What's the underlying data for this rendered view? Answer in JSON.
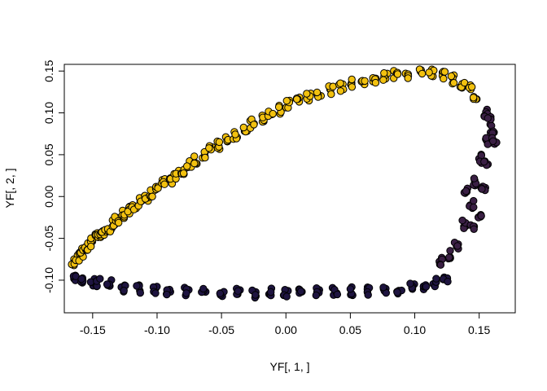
{
  "chart_data": {
    "type": "scatter",
    "title": "",
    "xlabel": "YF[, 1, ]",
    "ylabel": "YF[, 2, ]",
    "xlim": [
      -0.172,
      0.178
    ],
    "ylim": [
      -0.139,
      0.158
    ],
    "x_ticks": [
      -0.15,
      -0.1,
      -0.05,
      0.0,
      0.05,
      0.1,
      0.15
    ],
    "x_tick_labels": [
      "-0.15",
      "-0.10",
      "-0.05",
      "0.00",
      "0.05",
      "0.10",
      "0.15"
    ],
    "y_ticks": [
      -0.1,
      -0.05,
      0.0,
      0.05,
      0.1,
      0.15
    ],
    "y_tick_labels": [
      "-0.10",
      "-0.05",
      "0.00",
      "0.05",
      "0.10",
      "0.15"
    ],
    "grid": false,
    "legend": "none",
    "marker": {
      "shape": "filled-circle",
      "outline_color": "#000000"
    },
    "series": [
      {
        "color": "#f2c10f",
        "points": [
          [
            -0.165,
            -0.077
          ],
          [
            -0.162,
            -0.073
          ],
          [
            -0.159,
            -0.068
          ],
          [
            -0.157,
            -0.064
          ],
          [
            -0.154,
            -0.06
          ],
          [
            -0.151,
            -0.055
          ],
          [
            -0.147,
            -0.049
          ],
          [
            -0.144,
            -0.045
          ],
          [
            -0.141,
            -0.041
          ],
          [
            -0.137,
            -0.038
          ],
          [
            -0.133,
            -0.031
          ],
          [
            -0.131,
            -0.026
          ],
          [
            -0.126,
            -0.022
          ],
          [
            -0.122,
            -0.016
          ],
          [
            -0.118,
            -0.012
          ],
          [
            -0.113,
            -0.007
          ],
          [
            -0.108,
            -0.003
          ],
          [
            -0.104,
            0.005
          ],
          [
            -0.1,
            0.012
          ],
          [
            -0.095,
            0.016
          ],
          [
            -0.09,
            0.02
          ],
          [
            -0.085,
            0.026
          ],
          [
            -0.08,
            0.032
          ],
          [
            -0.075,
            0.038
          ],
          [
            -0.07,
            0.044
          ],
          [
            -0.064,
            0.05
          ],
          [
            -0.058,
            0.056
          ],
          [
            -0.052,
            0.061
          ],
          [
            -0.046,
            0.067
          ],
          [
            -0.039,
            0.074
          ],
          [
            -0.032,
            0.08
          ],
          [
            -0.026,
            0.087
          ],
          [
            -0.019,
            0.093
          ],
          [
            -0.012,
            0.098
          ],
          [
            -0.005,
            0.104
          ],
          [
            0.002,
            0.11
          ],
          [
            0.01,
            0.114
          ],
          [
            0.018,
            0.119
          ],
          [
            0.026,
            0.122
          ],
          [
            0.035,
            0.127
          ],
          [
            0.043,
            0.131
          ],
          [
            0.051,
            0.135
          ],
          [
            0.06,
            0.138
          ],
          [
            0.068,
            0.141
          ],
          [
            0.077,
            0.143
          ],
          [
            0.085,
            0.145
          ],
          [
            0.094,
            0.146
          ],
          [
            0.104,
            0.147
          ],
          [
            0.113,
            0.147
          ],
          [
            0.122,
            0.144
          ],
          [
            0.13,
            0.14
          ],
          [
            0.137,
            0.134
          ],
          [
            0.143,
            0.128
          ],
          [
            0.147,
            0.12
          ]
        ]
      },
      {
        "color": "#3a1f44",
        "points": [
          [
            0.155,
            0.1
          ],
          [
            0.158,
            0.09
          ],
          [
            0.16,
            0.075
          ],
          [
            0.156,
            0.066
          ],
          [
            0.162,
            0.068
          ],
          [
            0.15,
            0.045
          ],
          [
            0.155,
            0.04
          ],
          [
            0.146,
            0.018
          ],
          [
            0.153,
            0.012
          ],
          [
            0.14,
            0.005
          ],
          [
            0.144,
            -0.01
          ],
          [
            0.15,
            -0.026
          ],
          [
            0.138,
            -0.033
          ],
          [
            0.145,
            -0.038
          ],
          [
            0.132,
            -0.06
          ],
          [
            0.126,
            -0.07
          ],
          [
            0.121,
            -0.078
          ]
        ]
      },
      {
        "color": "#1e1440",
        "points": [
          [
            -0.163,
            -0.098
          ],
          [
            -0.158,
            -0.101
          ],
          [
            -0.15,
            -0.102
          ],
          [
            -0.145,
            -0.103
          ],
          [
            -0.137,
            -0.104
          ],
          [
            -0.126,
            -0.11
          ],
          [
            -0.114,
            -0.111
          ],
          [
            -0.101,
            -0.113
          ],
          [
            -0.091,
            -0.114
          ],
          [
            -0.077,
            -0.114
          ],
          [
            -0.064,
            -0.115
          ],
          [
            -0.05,
            -0.115
          ],
          [
            -0.037,
            -0.115
          ],
          [
            -0.025,
            -0.116
          ],
          [
            -0.012,
            -0.115
          ],
          [
            0.0,
            -0.115
          ],
          [
            0.012,
            -0.115
          ],
          [
            0.025,
            -0.114
          ],
          [
            0.038,
            -0.114
          ],
          [
            0.05,
            -0.113
          ],
          [
            0.063,
            -0.113
          ],
          [
            0.076,
            -0.112
          ],
          [
            0.088,
            -0.111
          ],
          [
            0.098,
            -0.109
          ],
          [
            0.108,
            -0.106
          ],
          [
            0.116,
            -0.103
          ],
          [
            0.124,
            -0.098
          ]
        ]
      }
    ]
  }
}
